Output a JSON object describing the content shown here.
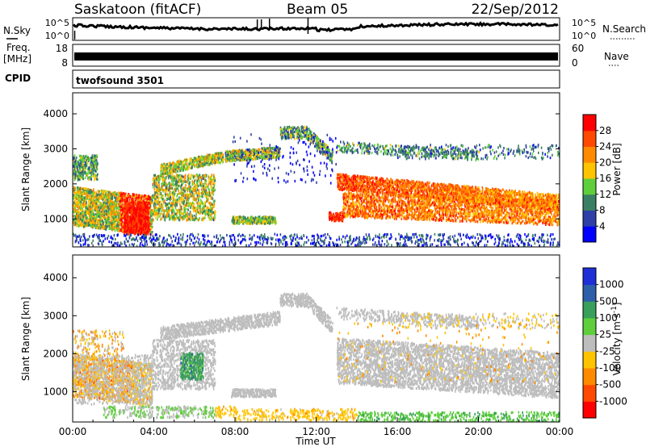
{
  "header": {
    "title": "Saskatoon (fitACF)",
    "beam": "Beam 05",
    "date": "22/Sep/2012"
  },
  "status_panels": {
    "nsky_label": "N.Sky",
    "nsky_ticks": [
      "10^5",
      "10^0"
    ],
    "nsearch_label": "N.Search",
    "nsearch_ticks": [
      "10^5",
      "10^0"
    ],
    "freq_label": "Freq.",
    "freq_unit": "[MHz]",
    "freq_ticks": [
      "18",
      "8"
    ],
    "nave_label": "Nave",
    "nave_ticks": [
      "60",
      "0"
    ],
    "cpid_label": "CPID",
    "cpid_value": "twofsound 3501"
  },
  "chart_data": [
    {
      "type": "heatmap",
      "name": "power",
      "ylabel": "Slant Range [km]",
      "ylim": [
        200,
        4600
      ],
      "yticks": [
        "4000",
        "3000",
        "2000",
        "1000"
      ],
      "colorbar_label": "Power [dB]",
      "colorbar_ticks": [
        "28",
        "24",
        "20",
        "16",
        "12",
        "8",
        "4"
      ],
      "colors": [
        "#0000ff",
        "#2e3fa8",
        "#3a7f64",
        "#5ecf3a",
        "#ffc400",
        "#ff8a00",
        "#ff4800",
        "#ff0000"
      ]
    },
    {
      "type": "heatmap",
      "name": "velocity",
      "ylabel": "Slant Range [km]",
      "ylim": [
        200,
        4600
      ],
      "yticks": [
        "4000",
        "3000",
        "2000",
        "1000"
      ],
      "colorbar_label": "Velocity [m s^-1]",
      "colorbar_ticks": [
        "1000",
        "500",
        "100",
        "25",
        "-25",
        "-100",
        "-500",
        "-1000"
      ],
      "colors": [
        "#ff0000",
        "#ff4800",
        "#ff8a00",
        "#ffc400",
        "#bdbdbd",
        "#5ecf3a",
        "#3a9f5a",
        "#2e5fa8",
        "#1e2fd8"
      ]
    }
  ],
  "time_axis": {
    "xlabel": "Time UT",
    "ticks": [
      "00:00",
      "04:00",
      "08:00",
      "12:00",
      "16:00",
      "20:00",
      "00:00"
    ]
  }
}
